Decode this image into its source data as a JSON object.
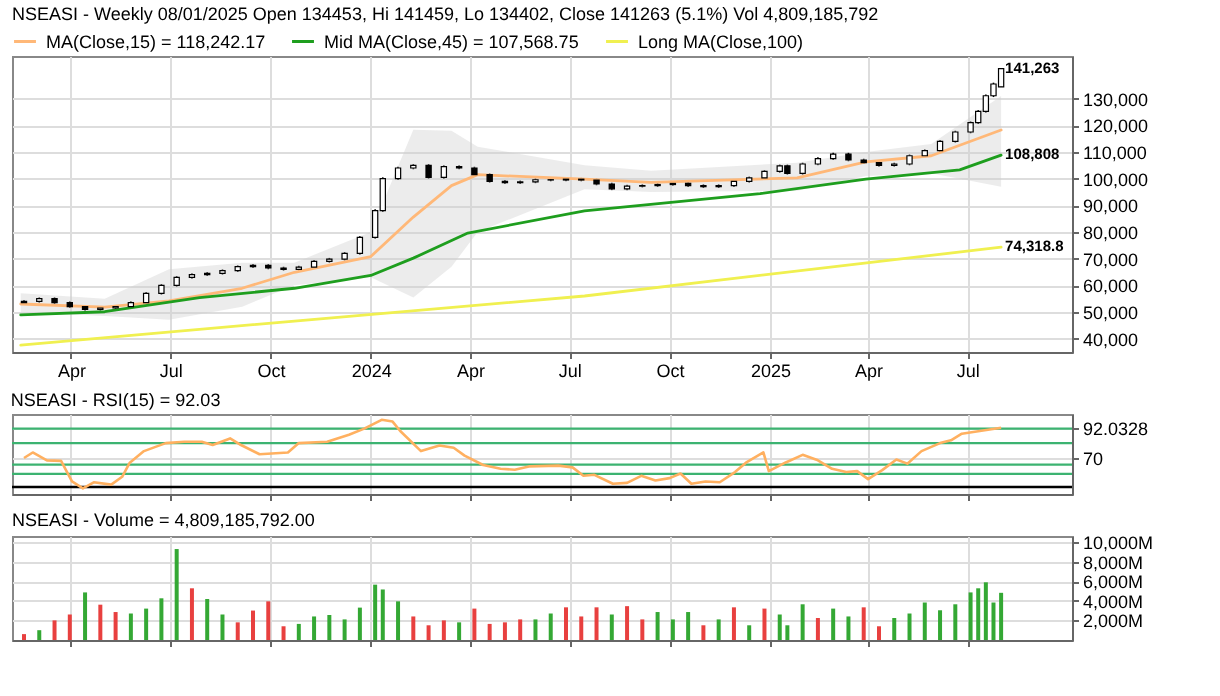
{
  "chart_data": [
    {
      "type": "candlestick",
      "title": "NSEASI - Weekly 08/01/2025 Open 134453, Hi 141459, Lo 134402, Close 141263 (5.1%) Vol 4,809,185,792",
      "x": [
        "2023-02-17",
        "2023-03-03",
        "2023-03-17",
        "2023-03-31",
        "2023-04-14",
        "2023-04-28",
        "2023-05-12",
        "2023-05-26",
        "2023-06-09",
        "2023-06-23",
        "2023-07-07",
        "2023-07-21",
        "2023-08-04",
        "2023-08-18",
        "2023-09-01",
        "2023-09-15",
        "2023-09-29",
        "2023-10-13",
        "2023-10-27",
        "2023-11-10",
        "2023-11-24",
        "2023-12-08",
        "2023-12-22",
        "2024-01-05",
        "2024-01-12",
        "2024-01-26",
        "2024-02-09",
        "2024-02-23",
        "2024-03-08",
        "2024-03-22",
        "2024-04-05",
        "2024-04-19",
        "2024-05-03",
        "2024-05-17",
        "2024-05-31",
        "2024-06-14",
        "2024-06-28",
        "2024-07-12",
        "2024-07-26",
        "2024-08-09",
        "2024-08-23",
        "2024-09-06",
        "2024-09-20",
        "2024-10-04",
        "2024-10-18",
        "2024-11-01",
        "2024-11-15",
        "2024-11-29",
        "2024-12-13",
        "2024-12-27",
        "2025-01-10",
        "2025-01-17",
        "2025-01-31",
        "2025-02-14",
        "2025-02-28",
        "2025-03-14",
        "2025-03-28",
        "2025-04-11",
        "2025-04-25",
        "2025-05-09",
        "2025-05-23",
        "2025-06-06",
        "2025-06-20",
        "2025-07-04",
        "2025-07-11",
        "2025-07-18",
        "2025-07-25",
        "2025-08-01"
      ],
      "ohlc": [
        [
          53500,
          54500,
          53000,
          54000
        ],
        [
          54000,
          55500,
          53500,
          55000
        ],
        [
          55000,
          55500,
          53000,
          53500
        ],
        [
          53500,
          54000,
          51500,
          52000
        ],
        [
          52000,
          52500,
          50500,
          51000
        ],
        [
          51000,
          52000,
          50500,
          51500
        ],
        [
          51500,
          52500,
          51000,
          52000
        ],
        [
          52000,
          54000,
          51500,
          53500
        ],
        [
          53500,
          57500,
          53000,
          57000
        ],
        [
          57000,
          60500,
          56500,
          60000
        ],
        [
          60000,
          63500,
          59500,
          63000
        ],
        [
          63000,
          64500,
          62500,
          64000
        ],
        [
          64000,
          65000,
          63500,
          64500
        ],
        [
          64500,
          66000,
          64000,
          65500
        ],
        [
          65500,
          67500,
          65000,
          67000
        ],
        [
          67000,
          68000,
          66500,
          67500
        ],
        [
          67500,
          68000,
          66000,
          66500
        ],
        [
          66500,
          67000,
          65500,
          66000
        ],
        [
          66000,
          67300,
          65500,
          66800
        ],
        [
          66800,
          69500,
          66300,
          69000
        ],
        [
          69000,
          70300,
          68500,
          69800
        ],
        [
          69800,
          72500,
          69300,
          72000
        ],
        [
          72000,
          78500,
          71500,
          78000
        ],
        [
          78000,
          88500,
          77500,
          88000
        ],
        [
          88000,
          100500,
          87500,
          100000
        ],
        [
          100000,
          104500,
          99500,
          104000
        ],
        [
          104000,
          105500,
          103500,
          105000
        ],
        [
          105000,
          105500,
          100000,
          100500
        ],
        [
          100500,
          105000,
          100000,
          104500
        ],
        [
          104500,
          105000,
          103500,
          104000
        ],
        [
          104000,
          104500,
          101000,
          101500
        ],
        [
          101500,
          102000,
          98500,
          99000
        ],
        [
          99000,
          99500,
          98000,
          98500
        ],
        [
          98500,
          99300,
          98000,
          98800
        ],
        [
          98800,
          100100,
          98300,
          99600
        ],
        [
          99600,
          100100,
          99000,
          99500
        ],
        [
          99500,
          100300,
          99000,
          99800
        ],
        [
          99800,
          100300,
          99000,
          99500
        ],
        [
          99500,
          100000,
          97500,
          98000
        ],
        [
          98000,
          98500,
          95700,
          96200
        ],
        [
          96200,
          97700,
          95700,
          97200
        ],
        [
          97200,
          97900,
          96700,
          97400
        ],
        [
          97400,
          98300,
          96900,
          97800
        ],
        [
          97800,
          98700,
          97300,
          98200
        ],
        [
          98200,
          98700,
          96900,
          97400
        ],
        [
          97400,
          97900,
          96500,
          97000
        ],
        [
          97000,
          97900,
          96500,
          97400
        ],
        [
          97400,
          99500,
          96900,
          99000
        ],
        [
          99000,
          100800,
          98500,
          100300
        ],
        [
          100300,
          103200,
          99800,
          102700
        ],
        [
          102700,
          105300,
          102200,
          104800
        ],
        [
          104800,
          105300,
          101500,
          102000
        ],
        [
          102000,
          106000,
          101500,
          105500
        ],
        [
          105500,
          108000,
          105000,
          107500
        ],
        [
          107500,
          109700,
          107000,
          109200
        ],
        [
          109200,
          109700,
          106500,
          107000
        ],
        [
          107000,
          107500,
          105500,
          106000
        ],
        [
          106000,
          106500,
          104500,
          105000
        ],
        [
          105000,
          106000,
          104500,
          105500
        ],
        [
          105500,
          109100,
          105000,
          108600
        ],
        [
          108600,
          111000,
          108100,
          110500
        ],
        [
          110500,
          114500,
          110000,
          114000
        ],
        [
          114000,
          118000,
          113500,
          117500
        ],
        [
          117500,
          121500,
          117000,
          121000
        ],
        [
          121000,
          125700,
          120500,
          125200
        ],
        [
          125200,
          131600,
          124700,
          131100
        ],
        [
          131100,
          136000,
          130600,
          135500
        ],
        [
          134453,
          141459,
          134402,
          141263
        ]
      ],
      "colors": [
        "#ffffff",
        "#ffffff",
        "#000000",
        "#000000",
        "#000000",
        "#ffffff",
        "#ffffff",
        "#ffffff",
        "#ffffff",
        "#ffffff",
        "#ffffff",
        "#ffffff",
        "#ffffff",
        "#ffffff",
        "#ffffff",
        "#ffffff",
        "#000000",
        "#000000",
        "#ffffff",
        "#ffffff",
        "#ffffff",
        "#ffffff",
        "#ffffff",
        "#ffffff",
        "#ffffff",
        "#ffffff",
        "#ffffff",
        "#000000",
        "#ffffff",
        "#000000",
        "#000000",
        "#000000",
        "#000000",
        "#ffffff",
        "#ffffff",
        "#000000",
        "#ffffff",
        "#000000",
        "#000000",
        "#000000",
        "#ffffff",
        "#ffffff",
        "#ffffff",
        "#ffffff",
        "#000000",
        "#000000",
        "#ffffff",
        "#ffffff",
        "#ffffff",
        "#ffffff",
        "#ffffff",
        "#000000",
        "#ffffff",
        "#ffffff",
        "#ffffff",
        "#000000",
        "#000000",
        "#000000",
        "#ffffff",
        "#ffffff",
        "#ffffff",
        "#ffffff",
        "#ffffff",
        "#ffffff",
        "#ffffff",
        "#ffffff",
        "#ffffff",
        "#ffffff"
      ],
      "series": [
        {
          "type": "line",
          "name": "MA(Close,15) = 118,242.17",
          "color": "#ffb878",
          "x": [
            "2023-02-14",
            "2023-05-02",
            "2023-06-30",
            "2023-09-05",
            "2023-10-23",
            "2024-01-01",
            "2024-02-09",
            "2024-03-15",
            "2024-04-08",
            "2024-07-15",
            "2024-09-14",
            "2025-01-26",
            "2025-03-30",
            "2025-05-29",
            "2025-08-01"
          ],
          "values": [
            53000,
            51800,
            54200,
            58900,
            64900,
            70800,
            85600,
            97400,
            101500,
            99800,
            98600,
            100300,
            106300,
            108600,
            118242.17
          ],
          "lower": [
            50000,
            48500,
            47100,
            52000,
            60000,
            63000,
            55400,
            67000,
            80000,
            96000,
            95000,
            95500,
            101000,
            102000,
            97000
          ],
          "upper": [
            57000,
            55000,
            66000,
            68500,
            68500,
            80000,
            118300,
            118000,
            112000,
            105000,
            103000,
            106000,
            110000,
            113000,
            131000
          ]
        },
        {
          "type": "line",
          "name": "Mid MA(Close,45) = 107,568.75",
          "color": "#1e9e1e",
          "x": [
            "2023-02-14",
            "2023-05-02",
            "2023-07-28",
            "2023-10-23",
            "2024-01-01",
            "2024-02-09",
            "2024-03-30",
            "2024-07-15",
            "2024-12-23",
            "2025-03-30",
            "2025-06-24",
            "2025-08-01"
          ],
          "values": [
            48900,
            50100,
            55400,
            58900,
            63700,
            70200,
            79600,
            87900,
            94400,
            99800,
            103300,
            108808
          ]
        },
        {
          "type": "line",
          "name": "Long MA(Close,100)",
          "color": "#f0f050",
          "x": [
            "2023-02-14",
            "2023-10-23",
            "2024-07-15",
            "2025-08-01"
          ],
          "values": [
            37600,
            46600,
            56000,
            74318.8
          ]
        }
      ],
      "xlim": [
        "2023-02-06",
        "2025-10-05"
      ],
      "ylim": [
        35000,
        146000
      ],
      "xticks": [
        {
          "value": "2023-04-01",
          "label": "Apr"
        },
        {
          "value": "2023-07-01",
          "label": "Jul"
        },
        {
          "value": "2023-10-01",
          "label": "Oct"
        },
        {
          "value": "2024-01-01",
          "label": "2024"
        },
        {
          "value": "2024-04-01",
          "label": "Apr"
        },
        {
          "value": "2024-07-01",
          "label": "Jul"
        },
        {
          "value": "2024-10-01",
          "label": "Oct"
        },
        {
          "value": "2025-01-01",
          "label": "2025"
        },
        {
          "value": "2025-04-01",
          "label": "Apr"
        },
        {
          "value": "2025-07-01",
          "label": "Jul"
        }
      ],
      "yticks": [
        {
          "value": 40000,
          "label": "40,000"
        },
        {
          "value": 50000,
          "label": "50,000"
        },
        {
          "value": 60000,
          "label": "60,000"
        },
        {
          "value": 70000,
          "label": "70,000"
        },
        {
          "value": 80000,
          "label": "80,000"
        },
        {
          "value": 90000,
          "label": "90,000"
        },
        {
          "value": 100000,
          "label": "100,000"
        },
        {
          "value": 110000,
          "label": "110,000"
        },
        {
          "value": 120000,
          "label": "120,000"
        },
        {
          "value": 130000,
          "label": "130,000"
        }
      ],
      "grid": true,
      "legend": "top left",
      "annotations": [
        {
          "text": "141,263",
          "x": "2025-08-01",
          "y": 141263
        },
        {
          "text": "108,808",
          "x": "2025-08-01",
          "y": 108808
        },
        {
          "text": "74,318.8",
          "x": "2025-08-01",
          "y": 74318.8
        }
      ]
    },
    {
      "type": "line",
      "title": "NSEASI - RSI(15) = 92.03",
      "x": [
        "2023-02-17",
        "2023-02-25",
        "2023-03-10",
        "2023-03-23",
        "2023-04-02",
        "2023-04-12",
        "2023-04-22",
        "2023-05-08",
        "2023-05-18",
        "2023-05-25",
        "2023-06-07",
        "2023-06-27",
        "2023-07-14",
        "2023-07-30",
        "2023-08-09",
        "2023-08-25",
        "2023-09-04",
        "2023-09-21",
        "2023-10-17",
        "2023-10-27",
        "2023-11-22",
        "2023-12-12",
        "2023-12-26",
        "2024-01-11",
        "2024-01-21",
        "2024-01-28",
        "2024-02-16",
        "2024-03-04",
        "2024-03-17",
        "2024-03-27",
        "2024-04-13",
        "2024-04-29",
        "2024-05-12",
        "2024-05-25",
        "2024-06-21",
        "2024-07-04",
        "2024-07-14",
        "2024-07-24",
        "2024-08-10",
        "2024-08-23",
        "2024-09-05",
        "2024-09-18",
        "2024-10-01",
        "2024-10-11",
        "2024-10-21",
        "2024-11-03",
        "2024-11-16",
        "2024-11-30",
        "2024-12-10",
        "2024-12-26",
        "2024-12-31",
        "2025-01-15",
        "2025-01-31",
        "2025-02-14",
        "2025-02-27",
        "2025-03-12",
        "2025-03-22",
        "2025-04-01",
        "2025-04-14",
        "2025-04-27",
        "2025-05-07",
        "2025-05-20",
        "2025-06-06",
        "2025-06-16",
        "2025-06-26",
        "2025-08-01"
      ],
      "series": [
        {
          "color": "#ffb060",
          "values": [
            70.1,
            74.1,
            68.4,
            68.0,
            53.1,
            48.1,
            52.5,
            50.8,
            56.5,
            66.7,
            75.1,
            80.9,
            81.9,
            81.9,
            79.5,
            84.3,
            79.5,
            72.8,
            74.1,
            80.9,
            81.9,
            87.0,
            91.4,
            97.8,
            96.5,
            89.7,
            75.1,
            79.2,
            77.5,
            71.8,
            65.0,
            62.3,
            61.6,
            64.0,
            64.6,
            63.3,
            57.2,
            57.9,
            51.4,
            52.1,
            57.2,
            53.8,
            55.5,
            58.9,
            51.4,
            53.1,
            52.5,
            59.9,
            66.7,
            74.1,
            60.6,
            66.7,
            72.4,
            68.4,
            62.3,
            59.9,
            60.6,
            54.8,
            61.3,
            69.0,
            66.0,
            75.1,
            80.9,
            82.9,
            87.7,
            92.03
          ]
        }
      ],
      "ref_lines": [
        {
          "axis": "y",
          "value": 91.4,
          "color": "#3cb371"
        },
        {
          "axis": "y",
          "value": 80.9,
          "color": "#3cb371"
        },
        {
          "axis": "y",
          "value": 65.3,
          "color": "#3cb371"
        },
        {
          "axis": "y",
          "value": 58.6,
          "color": "#3cb371"
        },
        {
          "axis": "y",
          "value": 49.1,
          "color": "#000000"
        }
      ],
      "xlim": [
        "2023-02-06",
        "2025-10-05"
      ],
      "ylim": [
        44,
        102
      ],
      "yticks": [
        70,
        92.0328
      ],
      "xticks": [
        {
          "value": "2023-04-01",
          "label": null
        },
        {
          "value": "2023-07-01",
          "label": null
        },
        {
          "value": "2023-10-01",
          "label": null
        },
        {
          "value": "2024-01-01",
          "label": null
        },
        {
          "value": "2024-04-01",
          "label": null
        },
        {
          "value": "2024-07-01",
          "label": null
        },
        {
          "value": "2024-10-01",
          "label": null
        },
        {
          "value": "2025-01-01",
          "label": null
        },
        {
          "value": "2025-04-01",
          "label": null
        },
        {
          "value": "2025-07-01",
          "label": null
        }
      ],
      "tick_labels": "y",
      "grid": true
    },
    {
      "type": "bar",
      "title": "NSEASI - Volume = 4,809,185,792.00",
      "x": [
        "2023-02-17",
        "2023-03-03",
        "2023-03-17",
        "2023-03-31",
        "2023-04-14",
        "2023-04-28",
        "2023-05-12",
        "2023-05-26",
        "2023-06-09",
        "2023-06-23",
        "2023-07-07",
        "2023-07-21",
        "2023-08-04",
        "2023-08-18",
        "2023-09-01",
        "2023-09-15",
        "2023-09-29",
        "2023-10-13",
        "2023-10-27",
        "2023-11-10",
        "2023-11-24",
        "2023-12-08",
        "2023-12-22",
        "2024-01-05",
        "2024-01-12",
        "2024-01-26",
        "2024-02-09",
        "2024-02-23",
        "2024-03-08",
        "2024-03-22",
        "2024-04-05",
        "2024-04-19",
        "2024-05-03",
        "2024-05-17",
        "2024-05-31",
        "2024-06-14",
        "2024-06-28",
        "2024-07-12",
        "2024-07-26",
        "2024-08-09",
        "2024-08-23",
        "2024-09-06",
        "2024-09-20",
        "2024-10-04",
        "2024-10-18",
        "2024-11-01",
        "2024-11-15",
        "2024-11-29",
        "2024-12-13",
        "2024-12-27",
        "2025-01-10",
        "2025-01-17",
        "2025-01-31",
        "2025-02-14",
        "2025-02-28",
        "2025-03-14",
        "2025-03-28",
        "2025-04-11",
        "2025-04-25",
        "2025-05-09",
        "2025-05-23",
        "2025-06-06",
        "2025-06-20",
        "2025-07-04",
        "2025-07-11",
        "2025-07-18",
        "2025-07-25",
        "2025-08-01"
      ],
      "values": [
        600,
        1000,
        2000,
        2600,
        4850,
        3600,
        2850,
        2700,
        3200,
        4250,
        9270,
        5270,
        4180,
        2600,
        1800,
        3000,
        3940,
        1400,
        1640,
        2400,
        2550,
        2100,
        3300,
        5640,
        5150,
        3940,
        2400,
        1500,
        2000,
        1800,
        3200,
        1640,
        1800,
        2100,
        2100,
        2700,
        3330,
        2400,
        3330,
        2600,
        3450,
        2100,
        2850,
        2100,
        2850,
        1500,
        2100,
        3330,
        1500,
        3200,
        2600,
        1500,
        3640,
        2240,
        3200,
        2400,
        3330,
        1400,
        2240,
        2700,
        3820,
        3030,
        3640,
        4850,
        5270,
        5880,
        3820,
        4809
      ],
      "colors": [
        "#e8403f",
        "#34a834",
        "#e8403f",
        "#e8403f",
        "#34a834",
        "#e8403f",
        "#e8403f",
        "#34a834",
        "#34a834",
        "#34a834",
        "#34a834",
        "#e8403f",
        "#34a834",
        "#34a834",
        "#e8403f",
        "#e8403f",
        "#e8403f",
        "#e8403f",
        "#34a834",
        "#34a834",
        "#34a834",
        "#34a834",
        "#34a834",
        "#34a834",
        "#34a834",
        "#34a834",
        "#e8403f",
        "#e8403f",
        "#e8403f",
        "#34a834",
        "#e8403f",
        "#e8403f",
        "#e8403f",
        "#e8403f",
        "#34a834",
        "#34a834",
        "#e8403f",
        "#e8403f",
        "#e8403f",
        "#34a834",
        "#e8403f",
        "#e8403f",
        "#34a834",
        "#34a834",
        "#34a834",
        "#e8403f",
        "#34a834",
        "#e8403f",
        "#34a834",
        "#e8403f",
        "#34a834",
        "#34a834",
        "#34a834",
        "#e8403f",
        "#34a834",
        "#34a834",
        "#e8403f",
        "#e8403f",
        "#34a834",
        "#34a834",
        "#34a834",
        "#34a834",
        "#34a834",
        "#34a834",
        "#34a834",
        "#34a834",
        "#34a834",
        "#34a834"
      ],
      "xlim": [
        "2023-02-06",
        "2025-10-05"
      ],
      "ylim": [
        0,
        10600
      ],
      "xticks": [
        {
          "value": "2023-04-01",
          "label": null
        },
        {
          "value": "2023-07-01",
          "label": null
        },
        {
          "value": "2023-10-01",
          "label": null
        },
        {
          "value": "2024-01-01",
          "label": null
        },
        {
          "value": "2024-04-01",
          "label": null
        },
        {
          "value": "2024-07-01",
          "label": null
        },
        {
          "value": "2024-10-01",
          "label": null
        },
        {
          "value": "2025-01-01",
          "label": null
        },
        {
          "value": "2025-04-01",
          "label": null
        },
        {
          "value": "2025-07-01",
          "label": null
        }
      ],
      "yticks": [
        {
          "value": 2000,
          "label": "2,000M"
        },
        {
          "value": 4000,
          "label": "4,000M"
        },
        {
          "value": 6000,
          "label": "6,000M"
        },
        {
          "value": 8000,
          "label": "8,000M"
        },
        {
          "value": 10000,
          "label": "10,000M"
        }
      ],
      "tick_labels": "y",
      "grid": true
    }
  ]
}
